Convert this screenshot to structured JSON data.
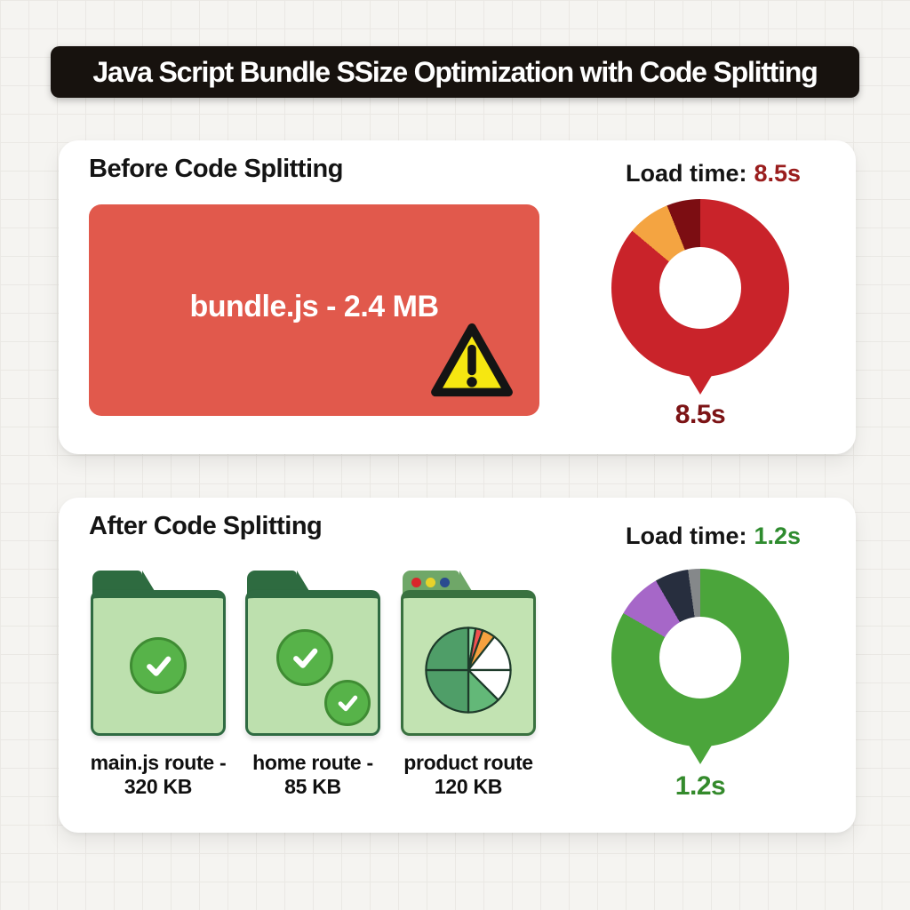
{
  "title_banner": {
    "text": "Java Script Bundle SSize Optimization with Code Splitting",
    "bg_color": "#17120E",
    "text_color": "#FFFFFF"
  },
  "before_card": {
    "heading": "Before Code Splitting",
    "bundle_box": {
      "label": "bundle.js - 2.4 MB",
      "color": "#E1594C",
      "icon": "warning-triangle-icon",
      "warning_yellow": "#F6E711"
    },
    "load_time": {
      "label": "Load time:",
      "value": "8.5s",
      "value_color": "#9A1D1D"
    },
    "donut_caption": "8.5s",
    "donut_caption_color": "#7C1315"
  },
  "after_card": {
    "heading": "After Code Splitting",
    "load_time": {
      "label": "Load time:",
      "value": "1.2s",
      "value_color": "#2E8B2E"
    },
    "donut_caption": "1.2s",
    "donut_caption_color": "#348A2C",
    "folders": [
      {
        "type": "folder-check",
        "checks": 1,
        "label1": "main.js route -",
        "label2": "320 KB"
      },
      {
        "type": "folder-check",
        "checks": 2,
        "label1": "home route -",
        "label2": "85 KB"
      },
      {
        "type": "browser-pie",
        "dots": [
          "#D9262B",
          "#E8D32A",
          "#2A4B8F"
        ],
        "label1": "product route",
        "label2": "120 KB"
      }
    ]
  },
  "chart_data": [
    {
      "type": "donut",
      "name": "before-load-time-donut",
      "caption": "8.5s",
      "segments": [
        {
          "label": "load",
          "color": "#C9232A",
          "start_deg": 0,
          "end_deg": 310
        },
        {
          "label": "slice-orange",
          "color": "#F4A441",
          "start_deg": 310,
          "end_deg": 338
        },
        {
          "label": "slice-maroon",
          "color": "#7C0D12",
          "start_deg": 338,
          "end_deg": 360
        }
      ],
      "hole_ratio": 0.46,
      "tail": "bottom"
    },
    {
      "type": "donut",
      "name": "after-load-time-donut",
      "caption": "1.2s",
      "segments": [
        {
          "label": "load",
          "color": "#4BA53B",
          "start_deg": 0,
          "end_deg": 300
        },
        {
          "label": "slice-purple",
          "color": "#A667C8",
          "start_deg": 300,
          "end_deg": 330
        },
        {
          "label": "slice-dark",
          "color": "#272E3E",
          "start_deg": 330,
          "end_deg": 352
        },
        {
          "label": "slice-gray",
          "color": "#85888A",
          "start_deg": 352,
          "end_deg": 360
        }
      ],
      "hole_ratio": 0.46,
      "tail": "bottom"
    },
    {
      "type": "pie",
      "name": "product-route-pie",
      "segments": [
        {
          "color": "#8FDCA8",
          "start_deg": 0,
          "end_deg": 10
        },
        {
          "color": "#F05050",
          "start_deg": 10,
          "end_deg": 20
        },
        {
          "color": "#F5A13F",
          "start_deg": 20,
          "end_deg": 38
        },
        {
          "color": "#FFFFFF",
          "start_deg": 38,
          "end_deg": 90
        },
        {
          "color": "#FFFFFF",
          "start_deg": 90,
          "end_deg": 135
        },
        {
          "color": "#63B878",
          "start_deg": 135,
          "end_deg": 180
        },
        {
          "color": "#4F9E68",
          "start_deg": 180,
          "end_deg": 270
        },
        {
          "color": "#4F9E68",
          "start_deg": 270,
          "end_deg": 360
        }
      ],
      "outline_color": "#1D3A2A"
    }
  ]
}
